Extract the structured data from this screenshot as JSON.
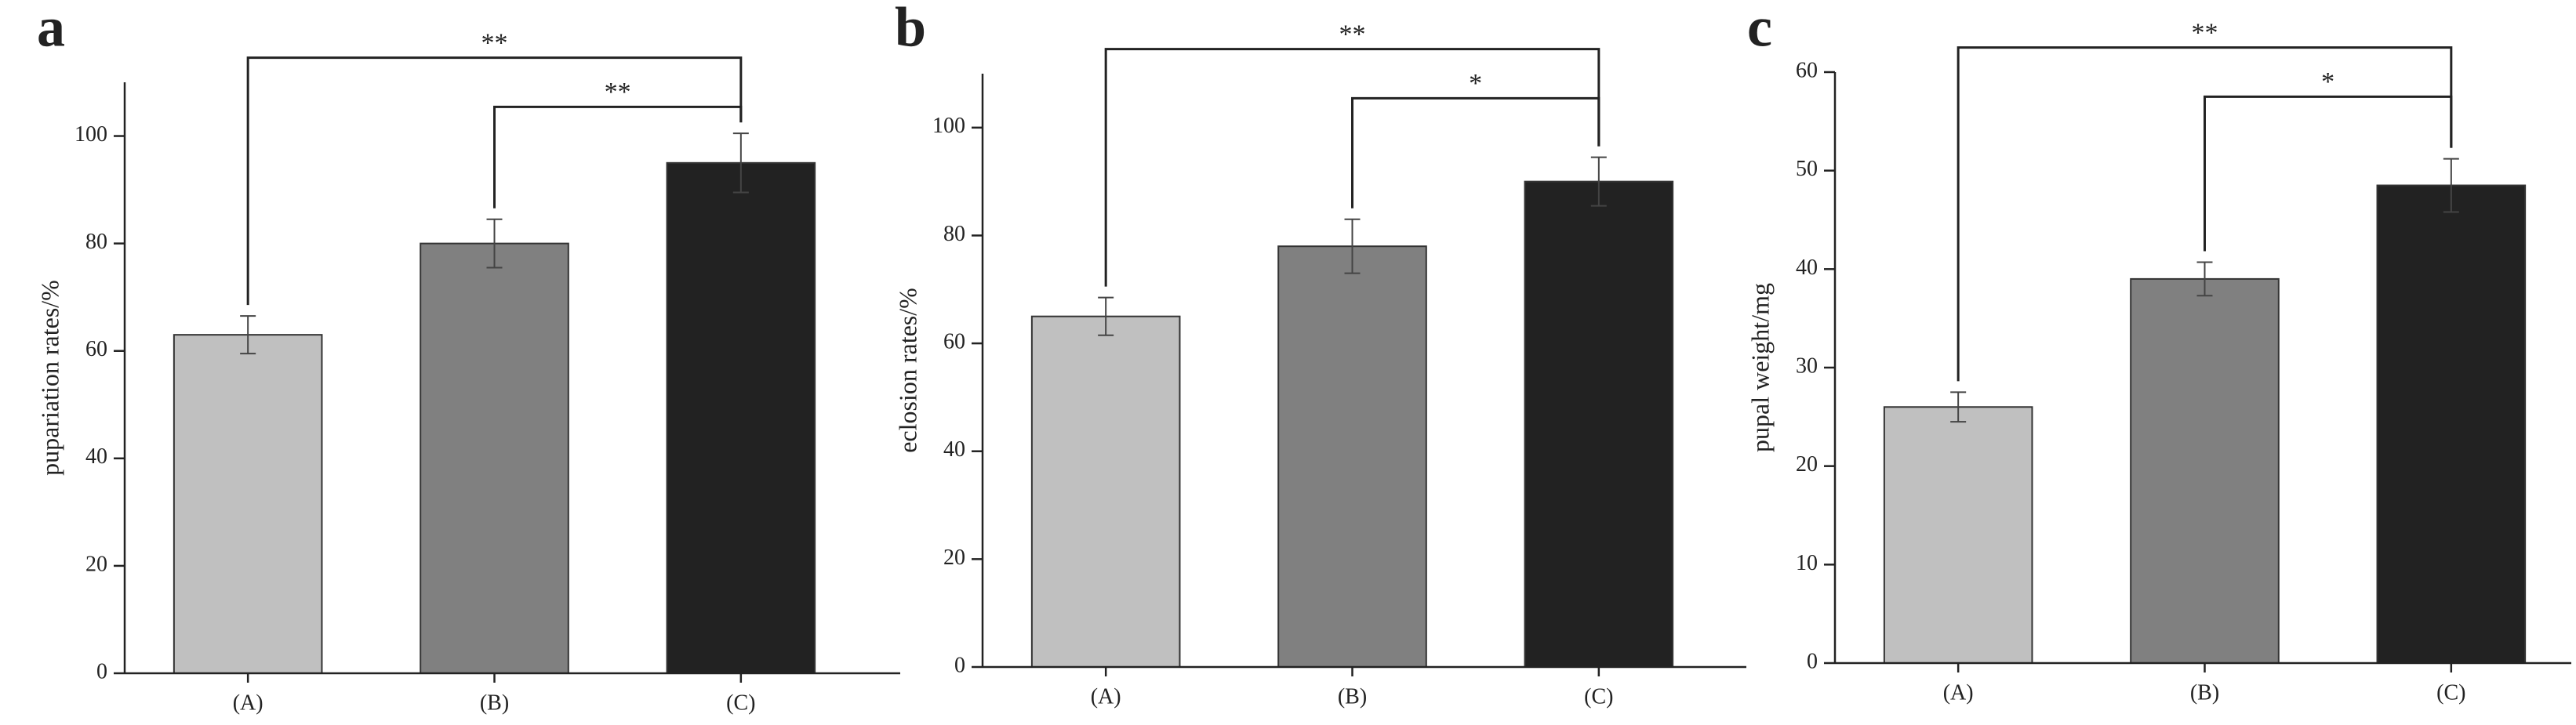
{
  "chart_data": [
    {
      "type": "bar",
      "panel": "a",
      "ylabel": "pupariation rates/%",
      "categories": [
        "(A)",
        "(B)",
        "(C)"
      ],
      "values": [
        63,
        80,
        95
      ],
      "errors": [
        3.5,
        4.5,
        5.5
      ],
      "colors": [
        "#c0c0c0",
        "#808080",
        "#222222"
      ],
      "ylim": [
        0,
        110
      ],
      "yticks": [
        0,
        20,
        40,
        60,
        80,
        100
      ],
      "annotations": [
        {
          "text": "**",
          "pair": [
            "(A)",
            "(C)"
          ]
        },
        {
          "text": "**",
          "pair": [
            "(B)",
            "(C)"
          ]
        }
      ]
    },
    {
      "type": "bar",
      "panel": "b",
      "ylabel": "eclosion rates/%",
      "categories": [
        "(A)",
        "(B)",
        "(C)"
      ],
      "values": [
        65,
        78,
        90
      ],
      "errors": [
        3.5,
        5,
        4.5
      ],
      "colors": [
        "#c0c0c0",
        "#808080",
        "#222222"
      ],
      "ylim": [
        0,
        110
      ],
      "yticks": [
        0,
        20,
        40,
        60,
        80,
        100
      ],
      "annotations": [
        {
          "text": "**",
          "pair": [
            "(A)",
            "(C)"
          ]
        },
        {
          "text": "*",
          "pair": [
            "(B)",
            "(C)"
          ]
        }
      ]
    },
    {
      "type": "bar",
      "panel": "c",
      "ylabel": "pupal weight/mg",
      "categories": [
        "(A)",
        "(B)",
        "(C)"
      ],
      "values": [
        26,
        39,
        48.5
      ],
      "errors": [
        1.5,
        1.7,
        2.7
      ],
      "colors": [
        "#c0c0c0",
        "#808080",
        "#222222"
      ],
      "ylim": [
        0,
        60
      ],
      "yticks": [
        0,
        10,
        20,
        30,
        40,
        50,
        60
      ],
      "annotations": [
        {
          "text": "**",
          "pair": [
            "(A)",
            "(C)"
          ]
        },
        {
          "text": "*",
          "pair": [
            "(B)",
            "(C)"
          ]
        }
      ]
    }
  ]
}
